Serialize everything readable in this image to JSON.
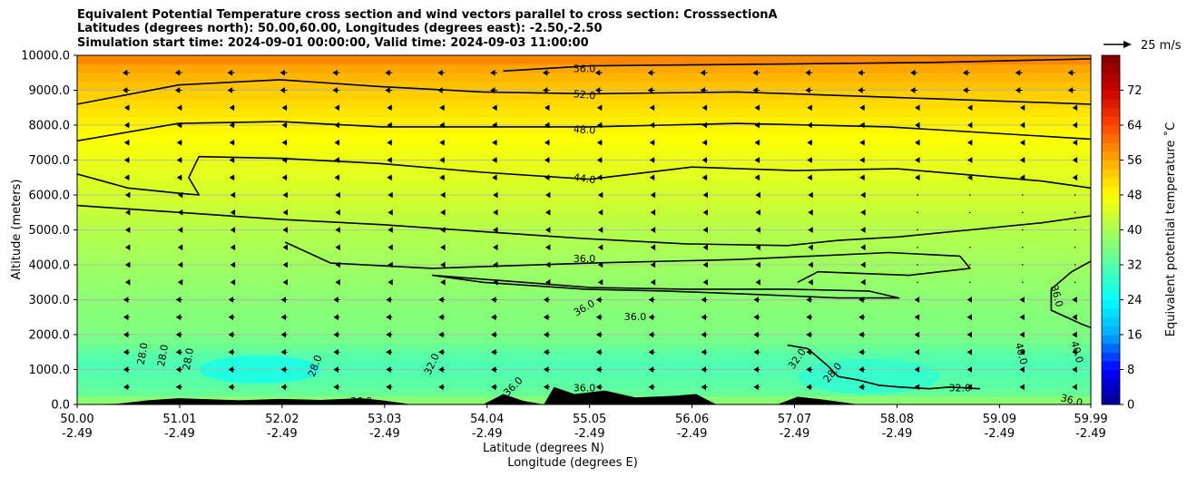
{
  "figure": {
    "title_lines": [
      "Equivalent Potential Temperature cross section and wind vectors parallel to cross section: CrosssectionA",
      "Latitudes (degrees north): 50.00,60.00, Longitudes (degrees east): -2.50,-2.50",
      "Simulation start time: 2024-09-01 00:00:00, Valid time: 2024-09-03 11:00:00"
    ]
  },
  "chart_data": {
    "type": "heatmap",
    "ylabel": "Altitude (meters)",
    "xlabel_lines": [
      "Latitude (degrees N)",
      "Longitude (degrees E)"
    ],
    "ylim": [
      0,
      10000
    ],
    "xlim": [
      50.0,
      59.99
    ],
    "y_ticks": [
      "0.0",
      "1000.0",
      "2000.0",
      "3000.0",
      "4000.0",
      "5000.0",
      "6000.0",
      "7000.0",
      "8000.0",
      "9000.0",
      "10000.0"
    ],
    "y_tick_values": [
      0,
      1000,
      2000,
      3000,
      4000,
      5000,
      6000,
      7000,
      8000,
      9000,
      10000
    ],
    "x_ticks": [
      {
        "lat": "50.00",
        "lon": "-2.49",
        "value": 50.0
      },
      {
        "lat": "51.01",
        "lon": "-2.49",
        "value": 51.01
      },
      {
        "lat": "52.02",
        "lon": "-2.49",
        "value": 52.02
      },
      {
        "lat": "53.03",
        "lon": "-2.49",
        "value": 53.03
      },
      {
        "lat": "54.04",
        "lon": "-2.49",
        "value": 54.04
      },
      {
        "lat": "55.05",
        "lon": "-2.49",
        "value": 55.05
      },
      {
        "lat": "56.06",
        "lon": "-2.49",
        "value": 56.06
      },
      {
        "lat": "57.07",
        "lon": "-2.49",
        "value": 57.07
      },
      {
        "lat": "58.08",
        "lon": "-2.49",
        "value": 58.08
      },
      {
        "lat": "59.09",
        "lon": "-2.49",
        "value": 59.09
      },
      {
        "lat": "59.99",
        "lon": "-2.49",
        "value": 59.99
      }
    ],
    "grid": "horizontal",
    "colorbar": {
      "label": "Equivalent potential temperature ˚C",
      "range": [
        0,
        80
      ],
      "ticks": [
        0,
        8,
        16,
        24,
        32,
        40,
        48,
        56,
        64,
        72
      ],
      "stops": [
        "#00008f",
        "#0000ff",
        "#00aaff",
        "#00ffff",
        "#55ffaa",
        "#aaff55",
        "#ffff00",
        "#ffaa00",
        "#ff4400",
        "#cc0000",
        "#800000"
      ]
    },
    "quiver_key": {
      "label": "25 m/s",
      "speed": 25
    },
    "wind_direction": "southward (toward lower latitude)",
    "theta_e_field": [
      {
        "altitude": 0,
        "value": 39
      },
      {
        "altitude": 400,
        "value": 33
      },
      {
        "altitude": 1200,
        "value": 31
      },
      {
        "altitude": 2000,
        "value": 36
      },
      {
        "altitude": 3000,
        "value": 37
      },
      {
        "altitude": 4000,
        "value": 39
      },
      {
        "altitude": 5000,
        "value": 41
      },
      {
        "altitude": 6000,
        "value": 44
      },
      {
        "altitude": 7000,
        "value": 46
      },
      {
        "altitude": 8000,
        "value": 49
      },
      {
        "altitude": 9000,
        "value": 53
      },
      {
        "altitude": 9600,
        "value": 56
      },
      {
        "altitude": 10000,
        "value": 60
      }
    ],
    "contours": [
      {
        "level": "56.0",
        "points": [
          [
            54.2,
            9550
          ],
          [
            55.05,
            9700
          ],
          [
            57.0,
            9750
          ],
          [
            58.5,
            9800
          ],
          [
            59.99,
            9900
          ]
        ]
      },
      {
        "level": "52.0",
        "points": [
          [
            50.0,
            8600
          ],
          [
            51.0,
            9150
          ],
          [
            52.0,
            9300
          ],
          [
            53.0,
            9100
          ],
          [
            54.0,
            8950
          ],
          [
            55.05,
            8900
          ],
          [
            56.5,
            8950
          ],
          [
            58.0,
            8800
          ],
          [
            59.99,
            8600
          ]
        ]
      },
      {
        "level": "48.0",
        "points": [
          [
            50.0,
            7550
          ],
          [
            51.0,
            8050
          ],
          [
            52.0,
            8100
          ],
          [
            53.0,
            7950
          ],
          [
            54.0,
            7950
          ],
          [
            55.05,
            7950
          ],
          [
            56.5,
            8050
          ],
          [
            58.0,
            7950
          ],
          [
            59.99,
            7600
          ]
        ]
      },
      {
        "level": "44.0",
        "points": [
          [
            50.0,
            6600
          ],
          [
            50.5,
            6200
          ],
          [
            51.0,
            6050
          ],
          [
            51.2,
            6000
          ],
          [
            51.1,
            6500
          ],
          [
            51.2,
            7100
          ],
          [
            52.0,
            7050
          ],
          [
            53.0,
            6900
          ],
          [
            54.0,
            6650
          ],
          [
            55.05,
            6450
          ],
          [
            56.06,
            6800
          ],
          [
            57.07,
            6700
          ],
          [
            58.08,
            6750
          ],
          [
            59.5,
            6400
          ],
          [
            59.99,
            6200
          ]
        ]
      },
      {
        "level": "40.0",
        "points": [
          [
            50.0,
            5700
          ],
          [
            51.0,
            5500
          ],
          [
            52.0,
            5300
          ],
          [
            53.0,
            5150
          ],
          [
            54.0,
            4950
          ],
          [
            55.0,
            4750
          ],
          [
            56.0,
            4600
          ],
          [
            57.0,
            4550
          ],
          [
            57.5,
            4700
          ],
          [
            58.1,
            4800
          ],
          [
            58.8,
            5000
          ],
          [
            59.5,
            5200
          ],
          [
            59.99,
            5400
          ]
        ]
      },
      {
        "level": "36.0",
        "points": [
          [
            52.05,
            4650
          ],
          [
            52.5,
            4050
          ],
          [
            53.5,
            3900
          ],
          [
            55.05,
            4050
          ],
          [
            56.5,
            4150
          ],
          [
            58.0,
            4350
          ],
          [
            58.7,
            4250
          ],
          [
            58.8,
            3900
          ],
          [
            58.2,
            3700
          ],
          [
            57.3,
            3800
          ],
          [
            57.1,
            3500
          ]
        ]
      },
      {
        "level": "36.0",
        "points": [
          [
            53.5,
            3700
          ],
          [
            54.4,
            3500
          ],
          [
            55.05,
            3350
          ],
          [
            56.0,
            3300
          ],
          [
            57.0,
            3300
          ],
          [
            57.8,
            3250
          ],
          [
            58.1,
            3050
          ],
          [
            57.5,
            3050
          ],
          [
            56.7,
            3150
          ],
          [
            55.8,
            3250
          ],
          [
            55.0,
            3300
          ],
          [
            54.0,
            3500
          ],
          [
            53.5,
            3700
          ]
        ]
      },
      {
        "level": "36.0",
        "points": [
          [
            59.99,
            4100
          ],
          [
            59.8,
            3800
          ],
          [
            59.6,
            3300
          ],
          [
            59.6,
            2700
          ],
          [
            59.9,
            2300
          ],
          [
            59.99,
            2200
          ]
        ]
      },
      {
        "level": "32.0",
        "points": [
          [
            57.0,
            1700
          ],
          [
            57.2,
            1600
          ],
          [
            57.4,
            1100
          ],
          [
            57.5,
            800
          ],
          [
            57.7,
            700
          ],
          [
            57.9,
            550
          ],
          [
            58.1,
            500
          ],
          [
            58.4,
            450
          ],
          [
            58.6,
            500
          ],
          [
            58.9,
            450
          ]
        ]
      }
    ],
    "contour_labels": [
      {
        "text": "56.0",
        "lat": 55.0,
        "alt": 9600,
        "rot": 0
      },
      {
        "text": "52.0",
        "lat": 55.0,
        "alt": 8850,
        "rot": -5
      },
      {
        "text": "48.0",
        "lat": 55.0,
        "alt": 7850,
        "rot": -3
      },
      {
        "text": "44.0",
        "lat": 55.0,
        "alt": 6450,
        "rot": -8
      },
      {
        "text": "36.0",
        "lat": 55.0,
        "alt": 4150,
        "rot": 0
      },
      {
        "text": "36.0",
        "lat": 55.0,
        "alt": 2750,
        "rot": 30
      },
      {
        "text": "36.0",
        "lat": 55.5,
        "alt": 2500,
        "rot": 0
      },
      {
        "text": "36.0",
        "lat": 59.65,
        "alt": 3100,
        "rot": -75
      },
      {
        "text": "28.0",
        "lat": 50.65,
        "alt": 1450,
        "rot": 80
      },
      {
        "text": "28.0",
        "lat": 50.85,
        "alt": 1400,
        "rot": 80
      },
      {
        "text": "28.0",
        "lat": 51.1,
        "alt": 1300,
        "rot": 80
      },
      {
        "text": "28.0",
        "lat": 52.35,
        "alt": 1100,
        "rot": 70
      },
      {
        "text": "32.0",
        "lat": 53.5,
        "alt": 1150,
        "rot": 65
      },
      {
        "text": "32.0",
        "lat": 57.1,
        "alt": 1300,
        "rot": 55
      },
      {
        "text": "28.0",
        "lat": 57.45,
        "alt": 900,
        "rot": 50
      },
      {
        "text": "32.0",
        "lat": 58.7,
        "alt": 450,
        "rot": 0
      },
      {
        "text": "36.0",
        "lat": 55.0,
        "alt": 450,
        "rot": 0
      },
      {
        "text": "36.0",
        "lat": 52.8,
        "alt": 80,
        "rot": 0
      },
      {
        "text": "36.0",
        "lat": 54.3,
        "alt": 500,
        "rot": 45
      },
      {
        "text": "36.0",
        "lat": 59.8,
        "alt": 100,
        "rot": -15
      },
      {
        "text": "40.0",
        "lat": 59.3,
        "alt": 1450,
        "rot": -75
      },
      {
        "text": "40.0",
        "lat": 59.85,
        "alt": 1500,
        "rot": -75
      }
    ],
    "terrain": [
      [
        50.0,
        0
      ],
      [
        50.4,
        20
      ],
      [
        50.7,
        120
      ],
      [
        51.0,
        180
      ],
      [
        51.3,
        150
      ],
      [
        51.6,
        120
      ],
      [
        52.0,
        160
      ],
      [
        52.4,
        130
      ],
      [
        52.8,
        180
      ],
      [
        53.0,
        120
      ],
      [
        53.3,
        0
      ],
      [
        54.0,
        0
      ],
      [
        54.2,
        300
      ],
      [
        54.4,
        100
      ],
      [
        54.6,
        0
      ],
      [
        54.7,
        500
      ],
      [
        54.9,
        300
      ],
      [
        55.2,
        400
      ],
      [
        55.5,
        200
      ],
      [
        55.9,
        250
      ],
      [
        56.1,
        300
      ],
      [
        56.3,
        0
      ],
      [
        56.9,
        0
      ],
      [
        57.1,
        220
      ],
      [
        57.3,
        160
      ],
      [
        57.5,
        80
      ],
      [
        57.7,
        0
      ]
    ]
  }
}
